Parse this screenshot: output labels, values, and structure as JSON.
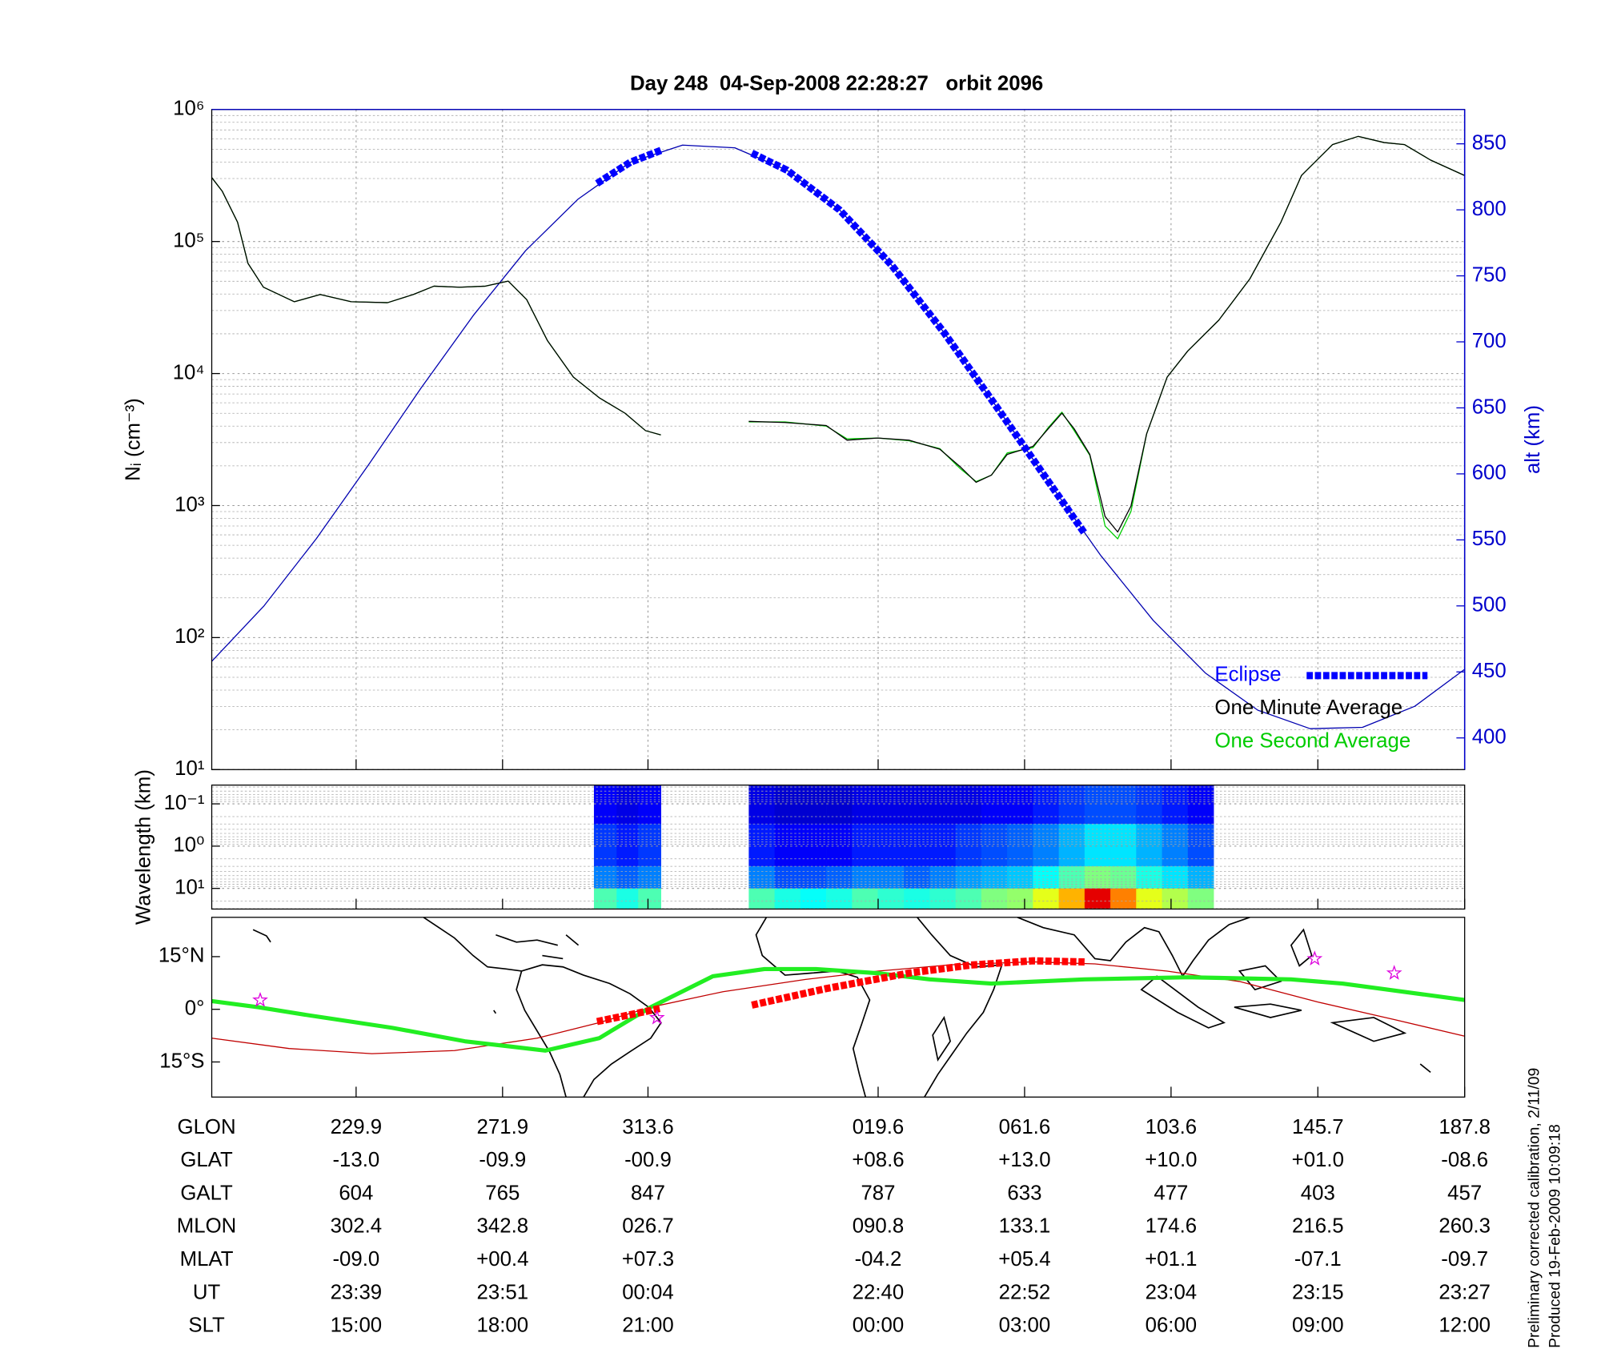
{
  "title": "Day 248  04-Sep-2008 22:28:27   orbit 2096",
  "chart_data": [
    {
      "type": "line",
      "ylabel": "Nᵢ (cm⁻³)",
      "y2label": "alt (km)",
      "xlim": [
        188.5,
        547.8
      ],
      "xticks": [
        229.9,
        271.9,
        313.6,
        379.6,
        421.6,
        463.6,
        505.7,
        547.8
      ],
      "yscale": "log",
      "ylim": [
        10,
        1000000
      ],
      "yticks": [
        {
          "value": 10,
          "label": "10¹"
        },
        {
          "value": 100,
          "label": "10²"
        },
        {
          "value": 1000,
          "label": "10³"
        },
        {
          "value": 10000,
          "label": "10⁴"
        },
        {
          "value": 100000,
          "label": "10⁵"
        },
        {
          "value": 1000000,
          "label": "10⁶"
        }
      ],
      "minor_yticks": [
        20,
        30,
        40,
        50,
        60,
        70,
        80,
        90,
        200,
        300,
        400,
        500,
        600,
        700,
        800,
        900,
        2000,
        3000,
        4000,
        5000,
        6000,
        7000,
        8000,
        9000,
        20000,
        30000,
        40000,
        50000,
        60000,
        70000,
        80000,
        90000,
        200000,
        300000,
        400000,
        500000,
        600000,
        700000,
        800000,
        900000
      ],
      "y2lim": [
        376,
        876
      ],
      "y2ticks": [
        400,
        450,
        500,
        550,
        600,
        650,
        700,
        750,
        800,
        850
      ],
      "grid": true,
      "legend": "lower right",
      "series": [
        {
          "name": "Eclipse",
          "color": "#0000ff",
          "axis": "y2",
          "style": "dashed-thick",
          "x": [
            299.0,
            308.5,
            317.3,
            330.0,
            343.4,
            353.5,
            368.5,
            383.5,
            398.5,
            413.5,
            428.5,
            438.8
          ],
          "values": [
            820,
            836,
            845,
            null,
            843,
            830,
            800,
            758,
            707,
            651,
            594,
            555
          ]
        },
        {
          "name": "One Minute Average",
          "color": "#000000",
          "x": [
            188.5,
            191.5,
            195.9,
            198.9,
            203.3,
            212.2,
            219.6,
            228.5,
            238.9,
            246.3,
            252.2,
            259.6,
            267.0,
            273.5,
            278.8,
            284.8,
            292.2,
            299.6,
            307.0,
            312.9,
            317.3,
            330.0,
            342.5,
            352.9,
            364.7,
            370.7,
            379.5,
            388.4,
            397.3,
            403.2,
            407.7,
            412.1,
            416.6,
            424.0,
            428.4,
            432.3,
            435.8,
            440.3,
            444.7,
            448.3,
            452.1,
            456.6,
            462.5,
            468.4,
            477.3,
            486.2,
            495.1,
            501.0,
            509.9,
            517.3,
            524.7,
            530.6,
            538.0,
            547.8
          ],
          "values": [
            305000,
            241000,
            140000,
            68200,
            45100,
            35000,
            39700,
            35000,
            34400,
            39700,
            45900,
            45100,
            45900,
            50200,
            36300,
            17700,
            9400,
            6560,
            5010,
            3690,
            3430,
            null,
            4340,
            4260,
            4040,
            3130,
            3250,
            3130,
            2670,
            1960,
            1500,
            1700,
            2440,
            2810,
            3820,
            5010,
            3820,
            2440,
            826,
            631,
            989,
            3490,
            9400,
            14800,
            25400,
            52100,
            140000,
            316000,
            542000,
            626000,
            562000,
            542000,
            414000,
            316000
          ]
        },
        {
          "name": "One Second Average",
          "color": "#00cc00",
          "x": [
            188.5,
            191.5,
            195.9,
            198.9,
            203.3,
            212.2,
            219.6,
            228.5,
            238.9,
            246.3,
            252.2,
            259.6,
            267.0,
            273.5,
            278.8,
            284.8,
            292.2,
            299.6,
            307.0,
            312.9,
            317.3,
            330.0,
            342.5,
            352.9,
            364.7,
            370.7,
            379.5,
            388.4,
            397.3,
            403.2,
            407.7,
            412.1,
            416.6,
            424.0,
            428.4,
            432.3,
            435.8,
            440.3,
            444.7,
            448.3,
            452.1,
            456.6,
            462.5,
            468.4,
            477.3,
            486.2,
            495.1,
            501.0,
            509.9,
            517.3,
            524.7,
            530.6,
            538.0,
            547.8
          ],
          "values": [
            305000,
            241000,
            140000,
            68200,
            45100,
            35000,
            39700,
            35000,
            34400,
            39700,
            45900,
            45100,
            45900,
            50200,
            36300,
            17700,
            9400,
            6560,
            5010,
            3690,
            3430,
            null,
            4300,
            4300,
            4000,
            3200,
            3250,
            3100,
            2700,
            1900,
            1520,
            1700,
            2500,
            2750,
            3900,
            5100,
            3700,
            2400,
            700,
            560,
            900,
            3490,
            9400,
            14800,
            25400,
            52100,
            140000,
            316000,
            542000,
            626000,
            562000,
            542000,
            414000,
            316000
          ]
        },
        {
          "color": "#0000b0",
          "axis": "y2",
          "x": [
            188.5,
            203.5,
            218.5,
            233.5,
            248.5,
            263.5,
            278.5,
            293.5,
            308.5,
            323.5,
            338.5,
            353.5,
            368.5,
            383.5,
            398.5,
            413.5,
            428.5,
            443.5,
            458.5,
            473.5,
            488.5,
            503.5,
            518.5,
            533.5,
            547.8
          ],
          "values": [
            458,
            500,
            551,
            607,
            665,
            720,
            769,
            808,
            836,
            849,
            847,
            830,
            800,
            758,
            707,
            651,
            594,
            538,
            489,
            449,
            421,
            407,
            408,
            424,
            452
          ]
        }
      ]
    },
    {
      "type": "heatmap",
      "ylabel": "Wavelength (km)",
      "xlim": [
        188.5,
        547.8
      ],
      "xticks": [
        229.9,
        271.9,
        313.6,
        379.6,
        421.6,
        463.6,
        505.7,
        547.8
      ],
      "yscale": "log",
      "ylim": [
        30.8,
        0.036
      ],
      "yticks": [
        {
          "value": 0.1,
          "label": "10⁻¹"
        },
        {
          "value": 1,
          "label": "10⁰"
        },
        {
          "value": 10,
          "label": "10¹"
        }
      ],
      "minor_yticks": [
        0.04,
        0.05,
        0.06,
        0.07,
        0.08,
        0.09,
        0.2,
        0.3,
        0.4,
        0.5,
        0.6,
        0.7,
        0.8,
        0.9,
        2,
        3,
        4,
        5,
        6,
        7,
        8,
        9,
        20,
        30
      ],
      "colormap": "jet",
      "y_edges": [
        0.036,
        0.3,
        3,
        10,
        30.8
      ],
      "blocks": [
        {
          "x_edges": [
            298.1,
            304.6,
            310.8,
            317.3
          ],
          "z": [
            [
              0.12,
              0.1,
              0.12
            ],
            [
              0.18,
              0.15,
              0.18
            ],
            [
              0.25,
              0.22,
              0.25
            ],
            [
              0.45,
              0.4,
              0.45
            ]
          ]
        },
        {
          "x_edges": [
            342.5,
            349.9,
            357.3,
            364.7,
            372.1,
            379.5,
            387.0,
            394.4,
            401.8,
            409.2,
            416.6,
            424.0,
            431.4,
            438.8,
            446.2,
            453.6,
            461.0,
            468.4,
            475.8
          ],
          "z": [
            [
              0.1,
              0.08,
              0.08,
              0.08,
              0.1,
              0.1,
              0.1,
              0.1,
              0.1,
              0.12,
              0.12,
              0.15,
              0.18,
              0.2,
              0.2,
              0.18,
              0.15,
              0.12
            ],
            [
              0.15,
              0.12,
              0.12,
              0.12,
              0.15,
              0.15,
              0.15,
              0.15,
              0.18,
              0.2,
              0.22,
              0.25,
              0.3,
              0.35,
              0.35,
              0.3,
              0.25,
              0.2
            ],
            [
              0.25,
              0.2,
              0.2,
              0.22,
              0.25,
              0.25,
              0.22,
              0.25,
              0.28,
              0.3,
              0.32,
              0.38,
              0.45,
              0.5,
              0.48,
              0.4,
              0.35,
              0.3
            ],
            [
              0.45,
              0.4,
              0.38,
              0.4,
              0.45,
              0.42,
              0.4,
              0.42,
              0.45,
              0.5,
              0.52,
              0.6,
              0.7,
              0.9,
              0.75,
              0.6,
              0.55,
              0.5
            ]
          ]
        }
      ]
    },
    {
      "type": "map",
      "xlim": [
        188.5,
        547.8
      ],
      "xticks": [
        229.9,
        271.9,
        313.6,
        379.6,
        421.6,
        463.6,
        505.7,
        547.8
      ],
      "ylim": [
        -25,
        26.2
      ],
      "yticks": [
        {
          "value": 15,
          "label": "15°N"
        },
        {
          "value": 0,
          "label": "0°"
        },
        {
          "value": -15,
          "label": "15°S"
        }
      ],
      "series": [
        {
          "color": "#c00000",
          "x": [
            188.5,
            210.7,
            234.4,
            258.1,
            281.8,
            299.6,
            314.4,
            335.1,
            358.8,
            379.5,
            400.3,
            424.0,
            441.8,
            462.5,
            483.2,
            505.7,
            527.6,
            547.8
          ],
          "values": [
            -8.24,
            -11.18,
            -12.65,
            -11.76,
            -8.24,
            -3.82,
            0.59,
            5.0,
            8.53,
            10.88,
            12.65,
            13.53,
            12.94,
            10.88,
            7.94,
            2.06,
            -2.94,
            -7.65
          ]
        },
        {
          "color": "#22ee22",
          "style": "thick",
          "x": [
            188.5,
            201.8,
            216.6,
            240.3,
            261.1,
            284.2,
            299.6,
            314.4,
            332.2,
            347.0,
            361.8,
            379.5,
            394.4,
            412.1,
            438.8,
            468.4,
            498.0,
            512.8,
            547.8
          ],
          "values": [
            2.35,
            0.59,
            -1.76,
            -5.29,
            -9.12,
            -11.76,
            -8.24,
            0.59,
            9.41,
            11.47,
            11.47,
            10.29,
            8.53,
            7.35,
            8.53,
            9.12,
            8.53,
            7.35,
            2.65
          ]
        },
        {
          "color": "#ff0000",
          "style": "dashed-thick",
          "x": [
            299.0,
            308.2,
            317.3,
            330.0,
            343.4,
            364.7,
            388.4,
            406.2,
            424.0,
            438.8
          ],
          "values": [
            -3.5,
            -1.6,
            0.3,
            null,
            1.2,
            5.9,
            10.3,
            12.6,
            13.8,
            13.5
          ]
        },
        {
          "color": "#dd00dd",
          "marker": "star",
          "x": [
            202.4,
            316.2,
            504.8,
            527.6
          ],
          "values": [
            2.6,
            -2.4,
            14.4,
            10.3
          ]
        }
      ]
    }
  ],
  "table": {
    "row_labels": [
      "GLON",
      "GLAT",
      "GALT",
      "MLON",
      "MLAT",
      "UT",
      "SLT"
    ],
    "rows": [
      [
        "229.9",
        "271.9",
        "313.6",
        "019.6",
        "061.6",
        "103.6",
        "145.7",
        "187.8"
      ],
      [
        "-13.0",
        "-09.9",
        "-00.9",
        "+08.6",
        "+13.0",
        "+10.0",
        "+01.0",
        "-08.6"
      ],
      [
        "604",
        "765",
        "847",
        "787",
        "633",
        "477",
        "403",
        "457"
      ],
      [
        "302.4",
        "342.8",
        "026.7",
        "090.8",
        "133.1",
        "174.6",
        "216.5",
        "260.3"
      ],
      [
        "-09.0",
        "+00.4",
        "+07.3",
        "-04.2",
        "+05.4",
        "+01.1",
        "-07.1",
        "-09.7"
      ],
      [
        "23:39",
        "23:51",
        "00:04",
        "22:40",
        "22:52",
        "23:04",
        "23:15",
        "23:27"
      ],
      [
        "15:00",
        "18:00",
        "21:00",
        "00:00",
        "03:00",
        "06:00",
        "09:00",
        "12:00"
      ]
    ]
  },
  "footer": [
    "Preliminary corrected calibration, 2/11/09",
    "Produced 19-Feb-2009 10:09:18"
  ]
}
